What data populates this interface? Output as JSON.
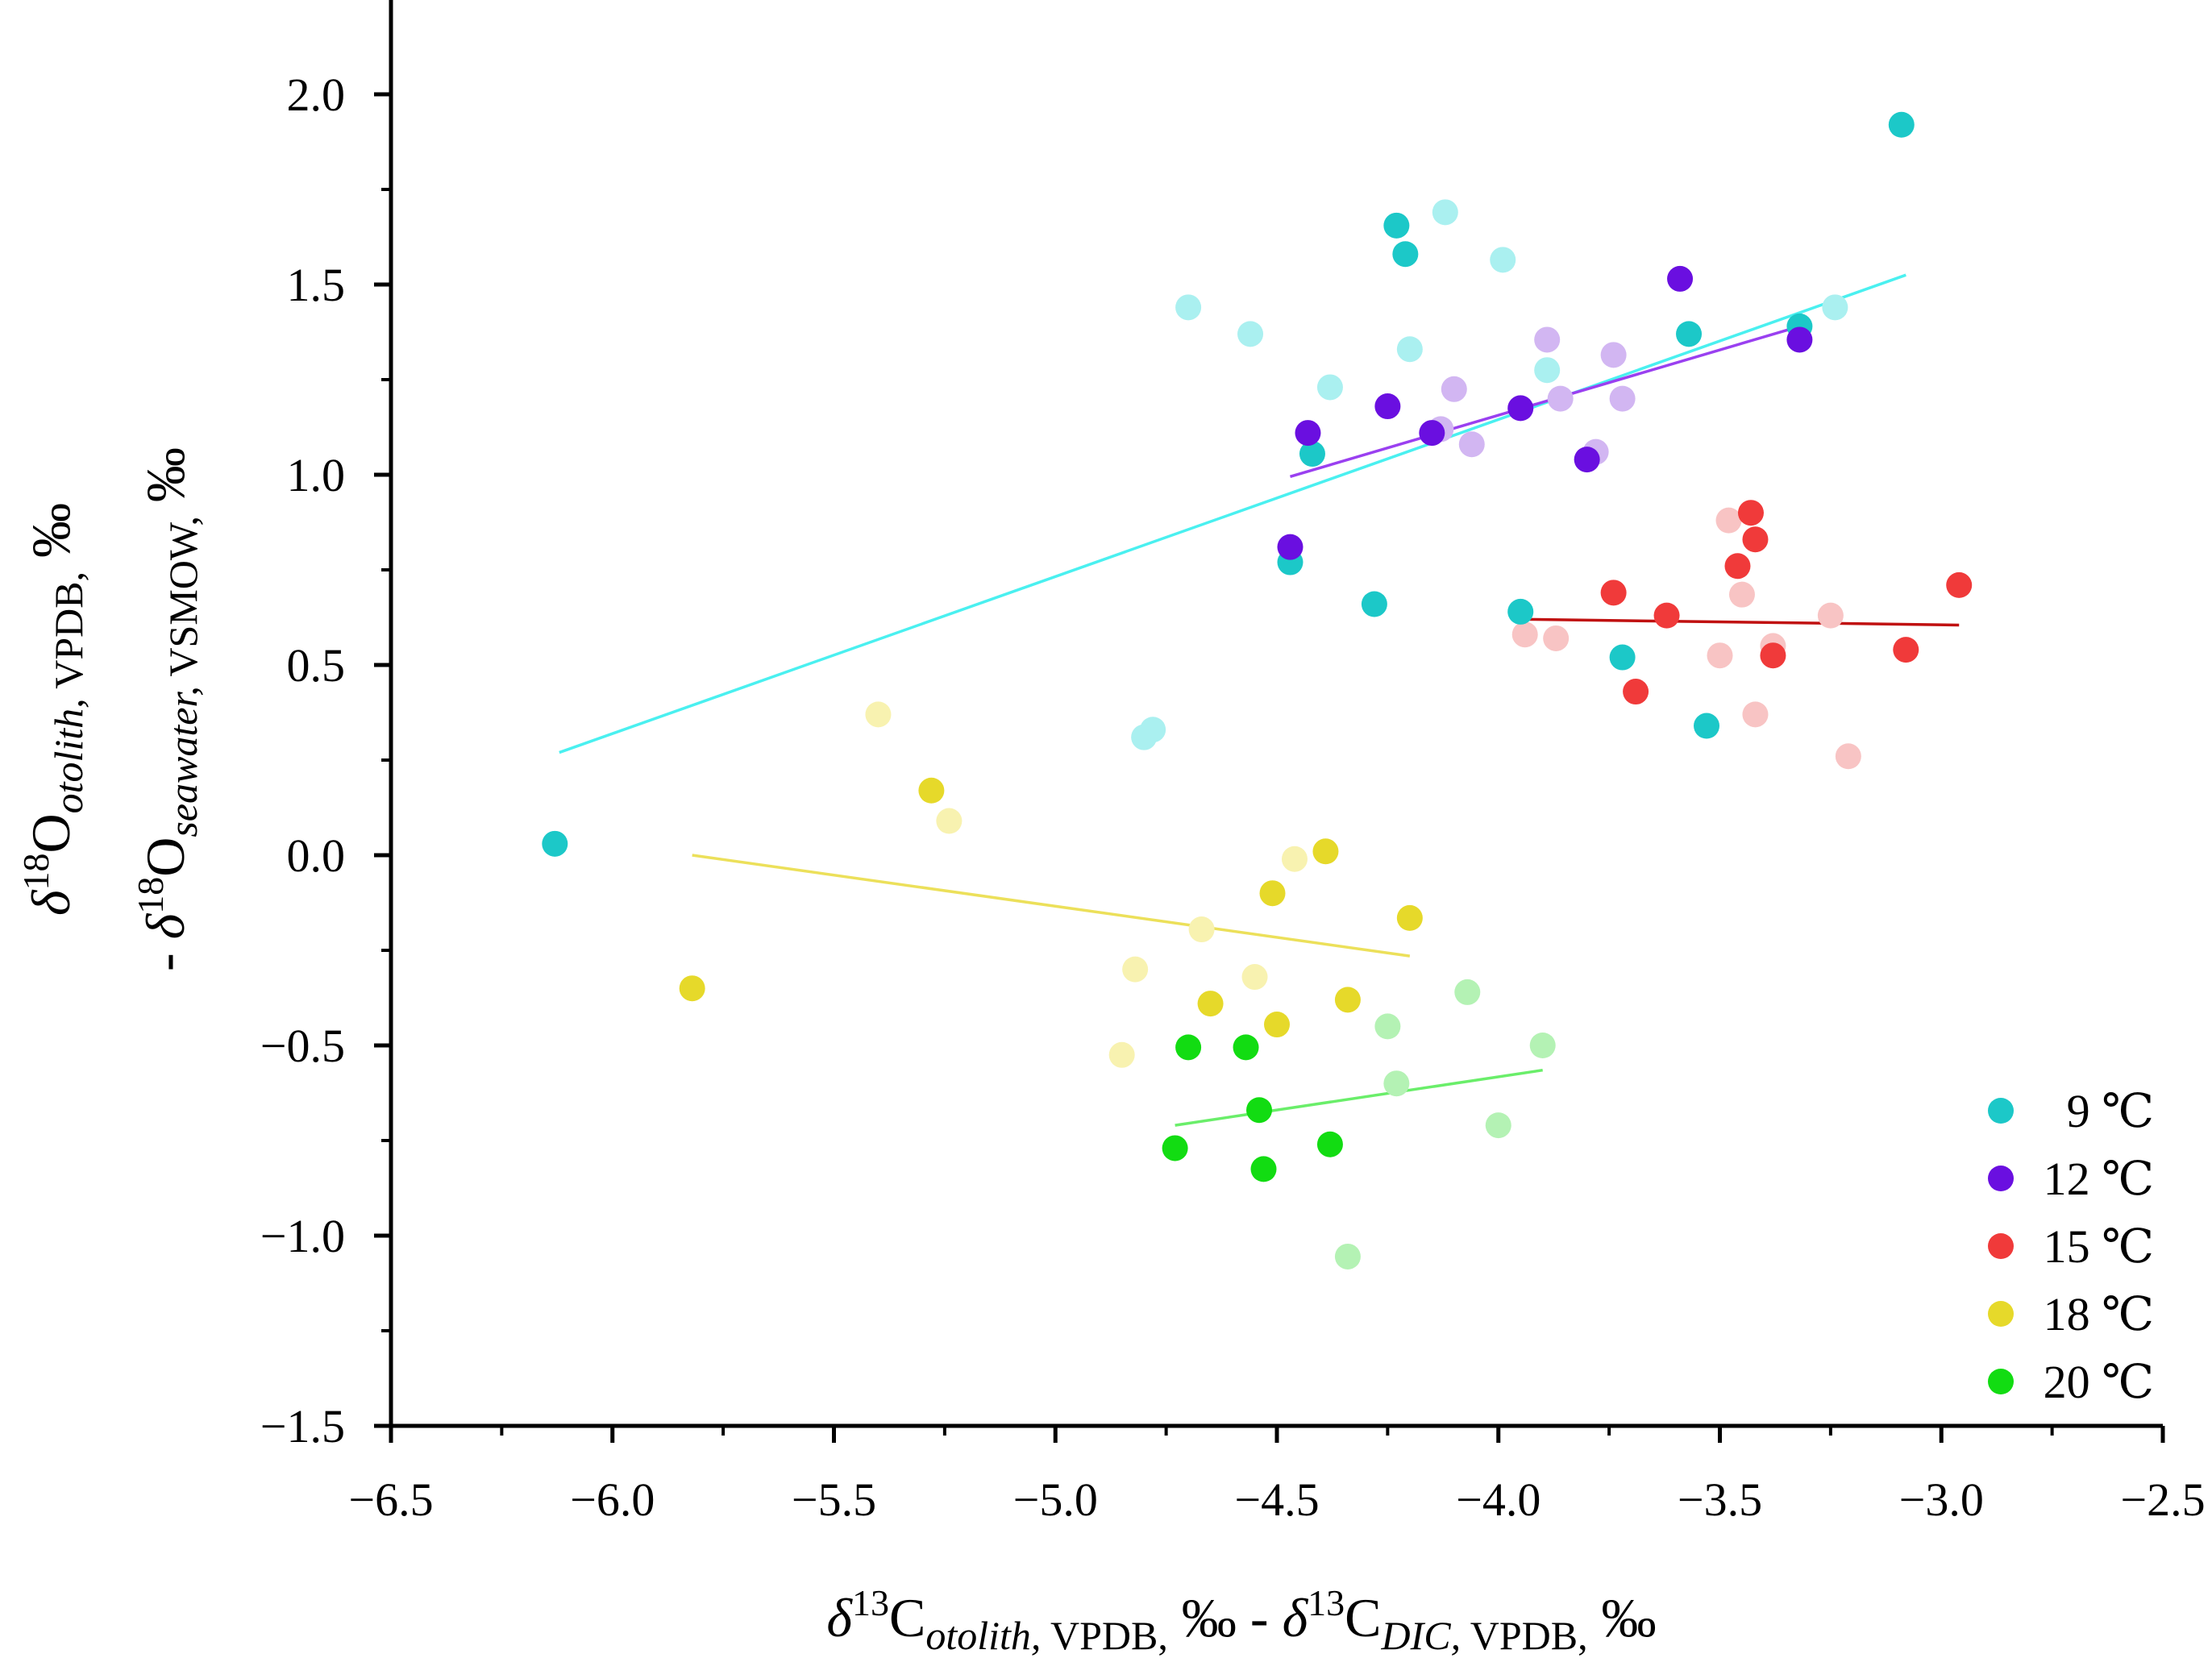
{
  "chart_data": {
    "type": "scatter",
    "xlim": [
      -6.5,
      -2.5
    ],
    "ylim": [
      -1.5,
      2.25
    ],
    "x_ticks": [
      -6.5,
      -6.0,
      -5.5,
      -5.0,
      -4.5,
      -4.0,
      -3.5,
      -3.0,
      -2.5
    ],
    "x_tick_labels": [
      "−6.5",
      "−6.0",
      "−5.5",
      "−5.0",
      "−4.5",
      "−4.0",
      "−3.5",
      "−3.0",
      "−2.5"
    ],
    "y_ticks": [
      -1.5,
      -1.0,
      -0.5,
      0.0,
      0.5,
      1.0,
      1.5,
      2.0
    ],
    "y_tick_labels": [
      "−1.5",
      "−1.0",
      "−0.5",
      "0.0",
      "0.5",
      "1.0",
      "1.5",
      "2.0"
    ],
    "xlabel": {
      "delta": "δ",
      "sup1": "13",
      "c1": "C",
      "sub1": "otolith,",
      "ref1": " VPDB,",
      "unit1": " ‰ - ",
      "delta2": "δ",
      "sup2": "13",
      "c2": "C",
      "sub2": "DIC,",
      "ref2": " VPDB,",
      "unit2": " ‰"
    },
    "ylabel": {
      "line1_delta": "δ",
      "line1_sup": "18",
      "line1_o": "O",
      "line1_sub": "otolith,",
      "line1_ref": " VPDB,",
      "line1_unit": " ‰",
      "line2_prefix": "- ",
      "line2_delta": "δ",
      "line2_sup": "18",
      "line2_o": "O",
      "line2_sub": "seawater,",
      "line2_ref": " VSMOW,",
      "line2_unit": " ‰"
    },
    "legend_position": "bottom-right",
    "series": [
      {
        "name": "9 ℃",
        "color": "#1cc8c8",
        "light_color": "#aaf0f0",
        "trend_color": "#4af0f0",
        "trend": {
          "x": [
            -6.12,
            -3.08
          ],
          "y": [
            0.27,
            1.525
          ]
        },
        "points": [
          [
            -6.13,
            0.03
          ],
          [
            -4.47,
            0.77
          ],
          [
            -4.42,
            1.055
          ],
          [
            -4.28,
            0.66
          ],
          [
            -4.23,
            1.655
          ],
          [
            -4.21,
            1.58
          ],
          [
            -3.95,
            0.64
          ],
          [
            -3.72,
            0.52
          ],
          [
            -3.57,
            1.37
          ],
          [
            -3.53,
            0.34
          ],
          [
            -3.32,
            1.39
          ],
          [
            -3.09,
            1.92
          ]
        ],
        "faded_points": [
          [
            -4.8,
            0.31
          ],
          [
            -4.78,
            0.33
          ],
          [
            -4.7,
            1.44
          ],
          [
            -4.56,
            1.37
          ],
          [
            -4.38,
            1.23
          ],
          [
            -4.2,
            1.33
          ],
          [
            -4.12,
            1.69
          ],
          [
            -3.99,
            1.565
          ],
          [
            -3.89,
            1.275
          ],
          [
            -3.24,
            1.44
          ]
        ]
      },
      {
        "name": "12 ℃",
        "color": "#6a0fe0",
        "light_color": "#d2b6f2",
        "trend_color": "#9a40f0",
        "trend": {
          "x": [
            -4.47,
            -3.32
          ],
          "y": [
            0.995,
            1.39
          ]
        },
        "points": [
          [
            -4.47,
            0.81
          ],
          [
            -4.43,
            1.11
          ],
          [
            -4.25,
            1.18
          ],
          [
            -4.15,
            1.11
          ],
          [
            -3.95,
            1.175
          ],
          [
            -3.8,
            1.04
          ],
          [
            -3.59,
            1.515
          ],
          [
            -3.32,
            1.355
          ]
        ],
        "faded_points": [
          [
            -4.13,
            1.12
          ],
          [
            -4.1,
            1.225
          ],
          [
            -4.06,
            1.08
          ],
          [
            -3.89,
            1.355
          ],
          [
            -3.86,
            1.2
          ],
          [
            -3.78,
            1.06
          ],
          [
            -3.74,
            1.315
          ],
          [
            -3.72,
            1.2
          ]
        ]
      },
      {
        "name": "15 ℃",
        "color": "#f03a3a",
        "light_color": "#f8c4c4",
        "trend_color": "#c01010",
        "trend": {
          "x": [
            -3.94,
            -2.96
          ],
          "y": [
            0.62,
            0.605
          ]
        },
        "points": [
          [
            -3.74,
            0.69
          ],
          [
            -3.69,
            0.43
          ],
          [
            -3.62,
            0.63
          ],
          [
            -3.46,
            0.76
          ],
          [
            -3.43,
            0.9
          ],
          [
            -3.42,
            0.83
          ],
          [
            -3.38,
            0.525
          ],
          [
            -3.08,
            0.54
          ],
          [
            -2.96,
            0.71
          ]
        ],
        "faded_points": [
          [
            -3.94,
            0.58
          ],
          [
            -3.87,
            0.57
          ],
          [
            -3.5,
            0.525
          ],
          [
            -3.48,
            0.88
          ],
          [
            -3.45,
            0.685
          ],
          [
            -3.42,
            0.37
          ],
          [
            -3.38,
            0.55
          ],
          [
            -3.25,
            0.63
          ],
          [
            -3.21,
            0.26
          ]
        ]
      },
      {
        "name": "18 ℃",
        "color": "#e6d92a",
        "light_color": "#f8f2b0",
        "trend_color": "#ece05a",
        "trend": {
          "x": [
            -5.82,
            -4.2
          ],
          "y": [
            0.0,
            -0.265
          ]
        },
        "points": [
          [
            -5.82,
            -0.35
          ],
          [
            -5.28,
            0.17
          ],
          [
            -4.65,
            -0.39
          ],
          [
            -4.51,
            -0.1
          ],
          [
            -4.5,
            -0.445
          ],
          [
            -4.39,
            0.01
          ],
          [
            -4.34,
            -0.38
          ],
          [
            -4.2,
            -0.165
          ]
        ],
        "faded_points": [
          [
            -5.4,
            0.37
          ],
          [
            -5.24,
            0.09
          ],
          [
            -4.85,
            -0.525
          ],
          [
            -4.82,
            -0.3
          ],
          [
            -4.67,
            -0.195
          ],
          [
            -4.55,
            -0.32
          ],
          [
            -4.46,
            -0.01
          ]
        ]
      },
      {
        "name": "20 ℃",
        "color": "#12dc12",
        "light_color": "#b4f2b4",
        "trend_color": "#6aee6a",
        "trend": {
          "x": [
            -4.73,
            -3.9
          ],
          "y": [
            -0.71,
            -0.565
          ]
        },
        "points": [
          [
            -4.73,
            -0.77
          ],
          [
            -4.7,
            -0.505
          ],
          [
            -4.57,
            -0.505
          ],
          [
            -4.54,
            -0.67
          ],
          [
            -4.53,
            -0.825
          ],
          [
            -4.38,
            -0.76
          ]
        ],
        "faded_points": [
          [
            -4.34,
            -1.055
          ],
          [
            -4.25,
            -0.45
          ],
          [
            -4.23,
            -0.6
          ],
          [
            -4.07,
            -0.36
          ],
          [
            -4.0,
            -0.71
          ],
          [
            -3.9,
            -0.5
          ]
        ]
      }
    ]
  }
}
